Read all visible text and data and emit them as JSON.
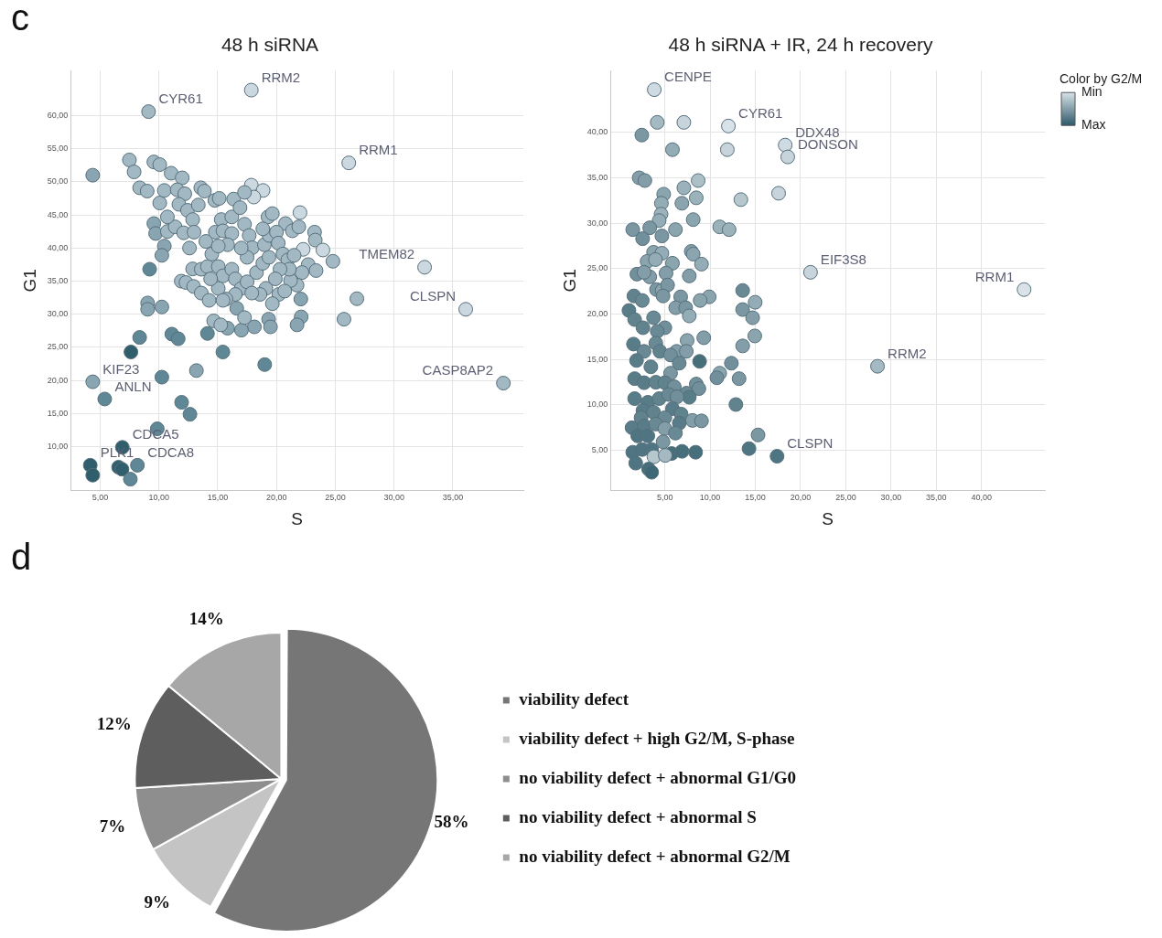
{
  "chart_data": [
    {
      "type": "scatter",
      "title": "48 h siRNA",
      "xlabel": "S",
      "ylabel": "G1",
      "marker": "circle",
      "grid": true,
      "xlim": [
        2.5,
        41
      ],
      "ylim": [
        3.4,
        66.8
      ],
      "xticks": [
        {
          "value": 5,
          "label": "5,00"
        },
        {
          "value": 10,
          "label": "10,00"
        },
        {
          "value": 15,
          "label": "15,00"
        },
        {
          "value": 20,
          "label": "20,00"
        },
        {
          "value": 25,
          "label": "25,00"
        },
        {
          "value": 30,
          "label": "30,00"
        },
        {
          "value": 35,
          "label": "35,00"
        }
      ],
      "yticks": [
        {
          "value": 10,
          "label": "10,00"
        },
        {
          "value": 15,
          "label": "15,00"
        },
        {
          "value": 20,
          "label": "20,00"
        },
        {
          "value": 25,
          "label": "25,00"
        },
        {
          "value": 30,
          "label": "30,00"
        },
        {
          "value": 35,
          "label": "35,00"
        },
        {
          "value": 40,
          "label": "40,00"
        },
        {
          "value": 45,
          "label": "45,00"
        },
        {
          "value": 50,
          "label": "50,00"
        },
        {
          "value": 55,
          "label": "55,00"
        },
        {
          "value": 60,
          "label": "60,00"
        }
      ],
      "x": [
        4.37,
        7.49,
        7.89,
        8.36,
        9.0,
        9.57,
        10.07,
        11.04,
        11.98,
        10.07,
        10.46,
        11.56,
        12.2,
        13.56,
        13.87,
        14.76,
        15.13,
        16.36,
        17.86,
        18.86,
        18.07,
        17.28,
        19.28,
        22.0,
        20.77,
        21.35,
        21.9,
        23.24,
        23.3,
        23.95,
        24.8,
        22.27,
        22.7,
        23.37,
        22.17,
        21.75,
        21.2,
        20.2,
        19.65,
        22.07,
        22.1,
        21.75,
        26.84,
        25.74,
        19.33,
        19.49,
        18.12,
        17.02,
        15.84,
        14.66,
        15.26,
        16.62,
        17.28,
        14.13,
        15.44,
        19.0,
        13.19,
        10.25,
        11.93,
        12.64,
        9.86,
        6.89,
        8.17,
        4.16,
        4.37,
        6.57,
        6.86,
        7.57,
        7.62,
        8.36,
        9.04,
        9.04,
        10.25,
        9.21,
        11.1,
        11.64,
        9.57,
        9.72,
        10.46,
        10.25,
        10.72,
        11.38,
        10.72,
        11.7,
        12.43,
        12.87,
        12.1,
        12.6,
        12.99,
        13.35,
        12.87,
        11.9,
        12.3,
        12.95,
        13.6,
        14.27,
        13.6,
        14.13,
        14.5,
        13.99,
        14.8,
        15.3,
        15.45,
        16.2,
        16.2,
        16.9,
        17.28,
        17.68,
        17.94,
        17.5,
        17.0,
        15.84,
        15.05,
        15.05,
        15.45,
        16.2,
        16.5,
        17.0,
        17.5,
        18.3,
        18.84,
        19.36,
        18.97,
        19.38,
        18.84,
        20.0,
        20.15,
        20.55,
        20.96,
        21.1,
        20.3,
        19.9,
        19.1,
        18.6,
        17.9,
        16.5,
        15.7,
        15.05,
        14.4,
        15.45,
        20.7,
        21.5,
        19.65,
        9.12,
        17.86,
        26.15,
        32.6,
        36.1,
        39.3,
        4.37,
        5.39
      ],
      "values": [
        51.0,
        53.3,
        51.5,
        49.1,
        48.6,
        53.0,
        52.6,
        51.3,
        50.6,
        46.8,
        48.7,
        48.8,
        48.2,
        49.1,
        48.6,
        47.2,
        47.5,
        47.4,
        49.5,
        48.7,
        47.7,
        48.4,
        44.7,
        45.35,
        43.7,
        42.6,
        43.2,
        42.4,
        41.2,
        39.7,
        38.0,
        39.8,
        37.5,
        36.6,
        36.3,
        34.4,
        35.1,
        33.0,
        31.6,
        32.3,
        29.6,
        28.4,
        32.35,
        29.25,
        29.25,
        28.1,
        28.1,
        27.6,
        27.9,
        29.0,
        28.4,
        30.9,
        29.5,
        27.1,
        24.3,
        22.4,
        21.5,
        20.5,
        16.7,
        14.9,
        12.7,
        9.9,
        7.2,
        7.2,
        5.7,
        6.9,
        6.6,
        5.1,
        24.3,
        26.5,
        31.7,
        30.75,
        31.1,
        36.8,
        27.0,
        26.3,
        43.7,
        42.2,
        40.3,
        38.9,
        42.5,
        43.2,
        44.7,
        46.6,
        45.7,
        44.3,
        42.3,
        40.0,
        42.4,
        46.5,
        36.85,
        35.0,
        34.8,
        34.2,
        33.2,
        32.1,
        36.8,
        37.2,
        39.1,
        41.0,
        42.4,
        44.3,
        42.6,
        42.2,
        44.7,
        46.1,
        43.6,
        41.9,
        40.05,
        38.6,
        40.0,
        40.5,
        40.3,
        37.2,
        35.8,
        36.8,
        35.35,
        33.9,
        34.9,
        36.3,
        37.7,
        38.6,
        40.5,
        41.9,
        42.9,
        42.4,
        40.75,
        39.1,
        38.2,
        36.8,
        36.8,
        35.35,
        33.9,
        33.0,
        33.2,
        33.0,
        32.3,
        33.9,
        35.35,
        32.1,
        33.5,
        38.9,
        45.2,
        60.6,
        63.85,
        52.86,
        37.1,
        30.75,
        19.6,
        19.8,
        17.2
      ],
      "colors": [
        "#8aa5b2",
        "#a2b8c3",
        "#a2b8c3",
        "#a2b8c3",
        "#a2b8c3",
        "#a2b8c3",
        "#a2b8c3",
        "#a2b8c3",
        "#a2b8c3",
        "#a2b8c3",
        "#a2b8c3",
        "#a2b8c3",
        "#a2b8c3",
        "#a2b8c3",
        "#a2b8c3",
        "#a2b8c3",
        "#a2b8c3",
        "#a2b8c3",
        "#ccd8df",
        "#ccd8df",
        "#ccd8df",
        "#a2b8c3",
        "#a2b8c3",
        "#ccd8df",
        "#a2b8c3",
        "#a2b8c3",
        "#a2b8c3",
        "#a2b8c3",
        "#a2b8c3",
        "#ccd8df",
        "#a2b8c3",
        "#ccd8df",
        "#a2b8c3",
        "#a2b8c3",
        "#a2b8c3",
        "#a2b8c3",
        "#a2b8c3",
        "#a2b8c3",
        "#a2b8c3",
        "#8aa5b2",
        "#8aa5b2",
        "#8aa5b2",
        "#a2b8c3",
        "#a2b8c3",
        "#8aa5b2",
        "#8aa5b2",
        "#8aa5b2",
        "#8aa5b2",
        "#8aa5b2",
        "#a2b8c3",
        "#a2b8c3",
        "#8aa5b2",
        "#a2b8c3",
        "#5f8795",
        "#5f8795",
        "#5f8795",
        "#8aa5b2",
        "#5f8795",
        "#5f8795",
        "#5f8795",
        "#5f8795",
        "#305e6c",
        "#5f8795",
        "#305e6c",
        "#305e6c",
        "#305e6c",
        "#305e6c",
        "#5f8795",
        "#305e6c",
        "#5f8795",
        "#8aa5b2",
        "#8aa5b2",
        "#8aa5b2",
        "#5f8795",
        "#5f8795",
        "#5f8795",
        "#8aa5b2",
        "#8aa5b2",
        "#8aa5b2",
        "#8aa5b2",
        "#a2b8c3",
        "#a2b8c3",
        "#a2b8c3",
        "#a2b8c3",
        "#a2b8c3",
        "#a2b8c3",
        "#a2b8c3",
        "#a2b8c3",
        "#a2b8c3",
        "#a2b8c3",
        "#a2b8c3",
        "#a2b8c3",
        "#a2b8c3",
        "#a2b8c3",
        "#a2b8c3",
        "#a2b8c3",
        "#a2b8c3",
        "#a2b8c3",
        "#a2b8c3",
        "#a2b8c3",
        "#a2b8c3",
        "#a2b8c3",
        "#a2b8c3",
        "#a2b8c3",
        "#a2b8c3",
        "#a2b8c3",
        "#a2b8c3",
        "#a2b8c3",
        "#a2b8c3",
        "#a2b8c3",
        "#a2b8c3",
        "#a2b8c3",
        "#a2b8c3",
        "#a2b8c3",
        "#a2b8c3",
        "#a2b8c3",
        "#a2b8c3",
        "#a2b8c3",
        "#a2b8c3",
        "#a2b8c3",
        "#a2b8c3",
        "#a2b8c3",
        "#a2b8c3",
        "#a2b8c3",
        "#a2b8c3",
        "#a2b8c3",
        "#a2b8c3",
        "#a2b8c3",
        "#a2b8c3",
        "#a2b8c3",
        "#a2b8c3",
        "#a2b8c3",
        "#a2b8c3",
        "#a2b8c3",
        "#a2b8c3",
        "#a2b8c3",
        "#a2b8c3",
        "#a2b8c3",
        "#a2b8c3",
        "#a2b8c3",
        "#a2b8c3",
        "#a2b8c3",
        "#a2b8c3",
        "#a2b8c3",
        "#ccd8df",
        "#ccd8df",
        "#ccd8df",
        "#ccd8df",
        "#a2b8c3",
        "#8aa5b2",
        "#5f8795"
      ],
      "annotations": [
        "c",
        {
          "text": "CYR61",
          "x": 9.12,
          "y": 60.6
        },
        {
          "text": "RRM2",
          "x": 17.86,
          "y": 63.85
        },
        {
          "text": "RRM1",
          "x": 26.15,
          "y": 52.86
        },
        {
          "text": "TMEM82",
          "x": 32.6,
          "y": 37.1
        },
        {
          "text": "CLSPN",
          "x": 36.1,
          "y": 30.75
        },
        {
          "text": "CASP8AP2",
          "x": 39.3,
          "y": 19.6
        },
        {
          "text": "KIF23",
          "x": 4.37,
          "y": 19.8
        },
        {
          "text": "ANLN",
          "x": 5.39,
          "y": 17.2
        },
        {
          "text": "CDCA5",
          "x": 6.89,
          "y": 9.9
        },
        {
          "text": "PLK1",
          "x": 4.16,
          "y": 7.2
        },
        {
          "text": "CDCA8",
          "x": 8.17,
          "y": 7.2
        }
      ]
    },
    {
      "type": "scatter",
      "title": "48 h siRNA + IR, 24 h recovery",
      "xlabel": "S",
      "ylabel": "G1",
      "marker": "circle",
      "grid": true,
      "xlim": [
        -1,
        47
      ],
      "ylim": [
        0.6,
        46.8
      ],
      "xticks": [
        {
          "value": 5,
          "label": "5,00"
        },
        {
          "value": 10,
          "label": "10,00"
        },
        {
          "value": 15,
          "label": "15,00"
        },
        {
          "value": 20,
          "label": "20,00"
        },
        {
          "value": 25,
          "label": "25,00"
        },
        {
          "value": 30,
          "label": "30,00"
        },
        {
          "value": 35,
          "label": "35,00"
        },
        {
          "value": 40,
          "label": "40,00"
        }
      ],
      "yticks": [
        {
          "value": 5,
          "label": "5,00"
        },
        {
          "value": 10,
          "label": "10,00"
        },
        {
          "value": 15,
          "label": "15,00"
        },
        {
          "value": 20,
          "label": "20,00"
        },
        {
          "value": 25,
          "label": "25,00"
        },
        {
          "value": 30,
          "label": "30,00"
        },
        {
          "value": 35,
          "label": "35,00"
        },
        {
          "value": 40,
          "label": "40,00"
        }
      ],
      "clabel": "Color by G2/M",
      "clim": [
        0,
        1
      ],
      "cticks": [
        {
          "value": 0,
          "label": "Min"
        },
        {
          "value": 1,
          "label": "Max"
        }
      ],
      "x": [
        3.83,
        12.02,
        18.3,
        18.58,
        21.1,
        44.7,
        28.5,
        17.4,
        4.16,
        7.1,
        2.45,
        5.84,
        11.9,
        2.16,
        2.79,
        7.1,
        8.68,
        4.87,
        8.47,
        13.4,
        17.57,
        6.88,
        4.62,
        4.58,
        4.37,
        8.13,
        1.45,
        3.33,
        6.17,
        11.06,
        12.1,
        2.54,
        4.67,
        3.75,
        4.67,
        7.92,
        8.13,
        3.04,
        3.96,
        5.84,
        9.05,
        1.91,
        3.33,
        2.7,
        7.7,
        5.13,
        4.08,
        4.7,
        5.3,
        13.6,
        14.98,
        9.9,
        8.9,
        6.75,
        1.58,
        2.5,
        4.8,
        6.2,
        7.3,
        13.6,
        14.7,
        7.7,
        1.03,
        1.66,
        3.75,
        5.0,
        2.58,
        4.16,
        14.94,
        9.3,
        7.46,
        1.53,
        4.0,
        13.6,
        6.3,
        7.37,
        2.7,
        4.45,
        1.87,
        5.63,
        6.59,
        8.84,
        12.35,
        3.45,
        5.63,
        11.06,
        13.2,
        10.75,
        1.66,
        2.7,
        4.0,
        5.0,
        6.04,
        8.47,
        8.76,
        7.4,
        7.7,
        12.85,
        1.66,
        3.12,
        4.37,
        5.42,
        6.34,
        2.58,
        3.75,
        5.84,
        6.8,
        2.37,
        5.0,
        8.05,
        9.05,
        1.37,
        2.7,
        4.0,
        6.59,
        5.0,
        2.0,
        3.12,
        4.8,
        6.17,
        15.3,
        1.45,
        2.5,
        3.54,
        5.75,
        6.9,
        8.4,
        14.3,
        3.79,
        5.04,
        1.78,
        3.2,
        3.54
      ],
      "values": [
        44.7,
        40.7,
        38.6,
        37.3,
        24.6,
        22.7,
        14.26,
        4.36,
        41.1,
        41.1,
        39.7,
        38.1,
        38.1,
        35.0,
        34.7,
        33.9,
        34.7,
        33.2,
        32.8,
        32.6,
        33.3,
        32.2,
        32.2,
        31.0,
        30.3,
        30.4,
        29.3,
        29.5,
        29.3,
        29.6,
        29.3,
        28.3,
        28.6,
        26.8,
        26.7,
        26.9,
        26.6,
        25.8,
        26.0,
        25.6,
        25.5,
        24.4,
        24.1,
        24.6,
        24.2,
        24.5,
        22.7,
        22.6,
        23.2,
        22.6,
        21.3,
        21.9,
        21.5,
        21.9,
        22.0,
        21.5,
        22.0,
        20.7,
        20.7,
        20.5,
        19.6,
        19.8,
        20.4,
        19.4,
        19.6,
        18.5,
        18.5,
        18.1,
        17.6,
        17.4,
        17.1,
        16.7,
        16.8,
        16.5,
        15.9,
        15.9,
        15.9,
        15.9,
        14.9,
        15.5,
        14.6,
        14.8,
        14.6,
        14.2,
        13.5,
        13.5,
        12.9,
        13.0,
        12.9,
        12.45,
        12.5,
        12.45,
        12.0,
        12.3,
        11.8,
        11.3,
        10.85,
        10.05,
        10.7,
        10.3,
        10.7,
        11.15,
        10.9,
        9.4,
        9.2,
        9.6,
        9.0,
        8.6,
        8.6,
        8.3,
        8.25,
        7.5,
        7.7,
        7.9,
        8.0,
        7.4,
        6.6,
        6.6,
        5.95,
        6.9,
        6.7,
        4.8,
        5.1,
        5.1,
        4.66,
        4.9,
        4.8,
        5.2,
        4.3,
        4.45,
        3.6,
        2.95,
        2.6
      ],
      "cvalues": [
        0.05,
        0,
        0.05,
        0.1,
        0.1,
        0,
        0.3,
        0.8,
        0.3,
        0.1,
        0.55,
        0.4,
        0.1,
        0.5,
        0.5,
        0.35,
        0.25,
        0.45,
        0.35,
        0.2,
        0.1,
        0.45,
        0.4,
        0.35,
        0.4,
        0.45,
        0.55,
        0.55,
        0.45,
        0.35,
        0.35,
        0.6,
        0.55,
        0.45,
        0.4,
        0.5,
        0.45,
        0.45,
        0.4,
        0.45,
        0.4,
        0.6,
        0.5,
        0.5,
        0.5,
        0.5,
        0.55,
        0.45,
        0.55,
        0.65,
        0.4,
        0.45,
        0.45,
        0.55,
        0.7,
        0.65,
        0.55,
        0.5,
        0.55,
        0.55,
        0.5,
        0.4,
        0.75,
        0.7,
        0.65,
        0.6,
        0.7,
        0.65,
        0.45,
        0.5,
        0.45,
        0.75,
        0.65,
        0.5,
        0.5,
        0.5,
        0.65,
        0.7,
        0.75,
        0.6,
        0.65,
        0.85,
        0.6,
        0.7,
        0.55,
        0.45,
        0.55,
        0.6,
        0.75,
        0.75,
        0.7,
        0.7,
        0.6,
        0.6,
        0.6,
        0.65,
        0.75,
        0.7,
        0.75,
        0.75,
        0.7,
        0.65,
        0.6,
        0.75,
        0.7,
        0.75,
        0.7,
        0.7,
        0.65,
        0.5,
        0.55,
        0.75,
        0.75,
        0.65,
        0.75,
        0.5,
        0.8,
        0.8,
        0.55,
        0.65,
        0.55,
        0.8,
        0.8,
        0.8,
        0.85,
        0.85,
        0.85,
        0.8,
        0.2,
        0.3,
        0.8,
        0.85,
        0.9
      ],
      "annotations": [
        {
          "text": "CENPE",
          "x": 3.83,
          "y": 44.7
        },
        {
          "text": "CYR61",
          "x": 12.02,
          "y": 40.7
        },
        {
          "text": "DDX48",
          "x": 18.3,
          "y": 38.6
        },
        {
          "text": "DONSON",
          "x": 18.58,
          "y": 37.3
        },
        {
          "text": "EIF3S8",
          "x": 21.1,
          "y": 24.6
        },
        {
          "text": "RRM1",
          "x": 44.7,
          "y": 22.7
        },
        {
          "text": "RRM2",
          "x": 28.5,
          "y": 14.26
        },
        {
          "text": "CLSPN",
          "x": 17.4,
          "y": 4.36
        }
      ]
    },
    {
      "type": "pie",
      "legend": "right",
      "categories": [
        "viability defect",
        "viability defect + high G2/M, S-phase",
        "no viability defect + abnormal G1/G0",
        "no viability defect + abnormal S",
        "no viability defect + abnormal G2/M"
      ],
      "values": [
        58,
        9,
        7,
        12,
        14
      ],
      "colors": [
        "#767676",
        "#c4c4c4",
        "#8e8e8e",
        "#5e5e5e",
        "#a7a7a8"
      ],
      "value_labels": [
        "58%",
        "9%",
        "7%",
        "12%",
        "14%"
      ],
      "annotations": [
        "d"
      ]
    }
  ]
}
